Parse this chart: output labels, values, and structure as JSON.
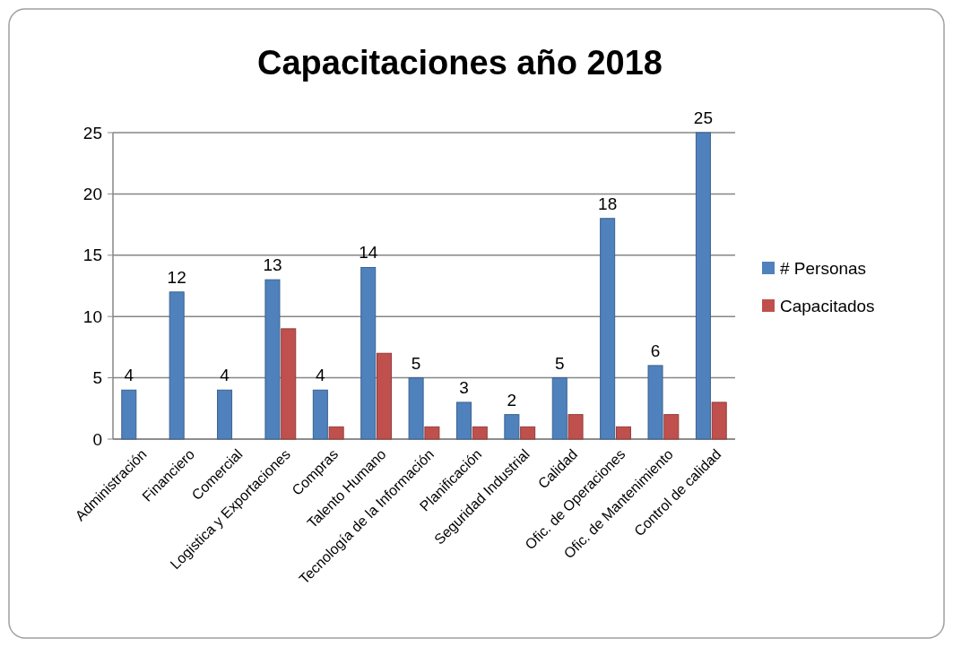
{
  "chart_data": {
    "type": "bar",
    "title": "Capacitaciones año 2018",
    "categories": [
      "Administración",
      "Financiero",
      "Comercial",
      "Logistica y Exportaciones",
      "Compras",
      "Talento Humano",
      "Tecnología de la Información",
      "Planificación",
      "Seguridad Industrial",
      "Calidad",
      "Ofic. de Operaciones",
      "Ofic. de Mantenimiento",
      "Control de calidad"
    ],
    "series": [
      {
        "name": "# Personas",
        "color": "#4f81bd",
        "values": [
          4,
          12,
          4,
          13,
          4,
          14,
          5,
          3,
          2,
          5,
          18,
          6,
          25
        ],
        "value_labels": [
          "4",
          "12",
          "4",
          "13",
          "4",
          "14",
          "5",
          "3",
          "2",
          "5",
          "18",
          "6",
          "25"
        ]
      },
      {
        "name": "Capacitados",
        "color": "#c0504d",
        "values": [
          null,
          null,
          null,
          9,
          1,
          7,
          1,
          1,
          1,
          2,
          1,
          2,
          3
        ]
      }
    ],
    "ylim": [
      0,
      25
    ],
    "yticks": [
      0,
      5,
      10,
      15,
      20,
      25
    ],
    "grid": "y",
    "legend": "right"
  }
}
